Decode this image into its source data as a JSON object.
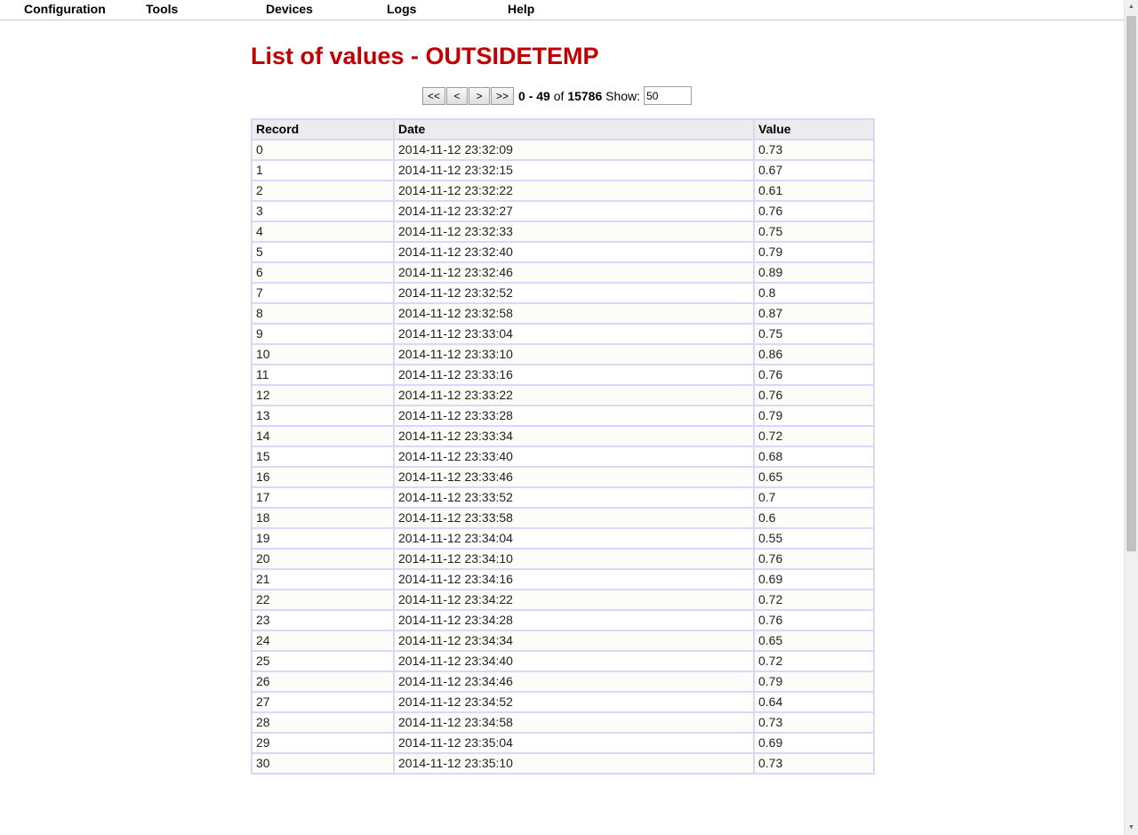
{
  "menu": {
    "items": [
      "Configuration",
      "Tools",
      "Devices",
      "Logs",
      "Help"
    ]
  },
  "page": {
    "title": "List of values - OUTSIDETEMP"
  },
  "pager": {
    "first_label": "<<",
    "prev_label": "<",
    "next_label": ">",
    "last_label": ">>",
    "range": "0 - 49",
    "of_label": "of",
    "total": "15786",
    "show_label": "Show:",
    "show_value": "50"
  },
  "table": {
    "columns": [
      "Record",
      "Date",
      "Value"
    ],
    "rows": [
      [
        "0",
        "2014-11-12 23:32:09",
        "0.73"
      ],
      [
        "1",
        "2014-11-12 23:32:15",
        "0.67"
      ],
      [
        "2",
        "2014-11-12 23:32:22",
        "0.61"
      ],
      [
        "3",
        "2014-11-12 23:32:27",
        "0.76"
      ],
      [
        "4",
        "2014-11-12 23:32:33",
        "0.75"
      ],
      [
        "5",
        "2014-11-12 23:32:40",
        "0.79"
      ],
      [
        "6",
        "2014-11-12 23:32:46",
        "0.89"
      ],
      [
        "7",
        "2014-11-12 23:32:52",
        "0.8"
      ],
      [
        "8",
        "2014-11-12 23:32:58",
        "0.87"
      ],
      [
        "9",
        "2014-11-12 23:33:04",
        "0.75"
      ],
      [
        "10",
        "2014-11-12 23:33:10",
        "0.86"
      ],
      [
        "11",
        "2014-11-12 23:33:16",
        "0.76"
      ],
      [
        "12",
        "2014-11-12 23:33:22",
        "0.76"
      ],
      [
        "13",
        "2014-11-12 23:33:28",
        "0.79"
      ],
      [
        "14",
        "2014-11-12 23:33:34",
        "0.72"
      ],
      [
        "15",
        "2014-11-12 23:33:40",
        "0.68"
      ],
      [
        "16",
        "2014-11-12 23:33:46",
        "0.65"
      ],
      [
        "17",
        "2014-11-12 23:33:52",
        "0.7"
      ],
      [
        "18",
        "2014-11-12 23:33:58",
        "0.6"
      ],
      [
        "19",
        "2014-11-12 23:34:04",
        "0.55"
      ],
      [
        "20",
        "2014-11-12 23:34:10",
        "0.76"
      ],
      [
        "21",
        "2014-11-12 23:34:16",
        "0.69"
      ],
      [
        "22",
        "2014-11-12 23:34:22",
        "0.72"
      ],
      [
        "23",
        "2014-11-12 23:34:28",
        "0.76"
      ],
      [
        "24",
        "2014-11-12 23:34:34",
        "0.65"
      ],
      [
        "25",
        "2014-11-12 23:34:40",
        "0.72"
      ],
      [
        "26",
        "2014-11-12 23:34:46",
        "0.79"
      ],
      [
        "27",
        "2014-11-12 23:34:52",
        "0.64"
      ],
      [
        "28",
        "2014-11-12 23:34:58",
        "0.73"
      ],
      [
        "29",
        "2014-11-12 23:35:04",
        "0.69"
      ],
      [
        "30",
        "2014-11-12 23:35:10",
        "0.73"
      ]
    ]
  },
  "colors": {
    "title": "#c00000",
    "table_border": "#d8d8f8",
    "header_bg": "#ececec"
  }
}
